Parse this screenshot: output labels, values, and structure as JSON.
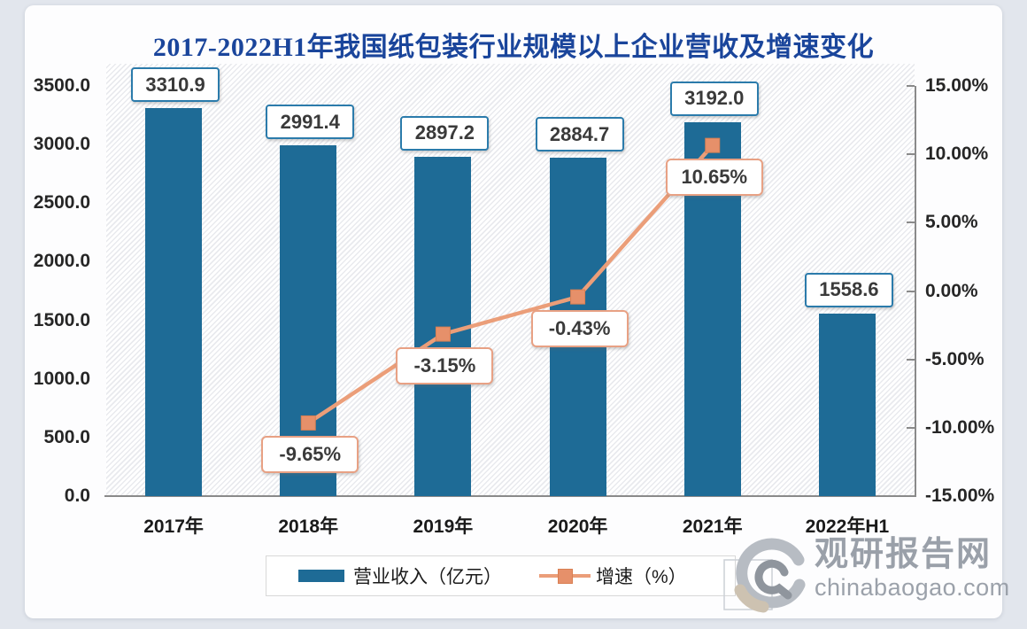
{
  "chart_data": {
    "type": "bar+line",
    "title": "2017-2022H1年我国纸包装行业规模以上企业营收及增速变化",
    "categories": [
      "2017年",
      "2018年",
      "2019年",
      "2020年",
      "2021年",
      "2022年H1"
    ],
    "series": [
      {
        "name": "营业收入（亿元）",
        "type": "bar",
        "axis": "left",
        "values": [
          3310.9,
          2991.4,
          2897.2,
          2884.7,
          3192.0,
          1558.6
        ],
        "data_labels": [
          "3310.9",
          "2991.4",
          "2897.2",
          "2884.7",
          "3192.0",
          "1558.6"
        ]
      },
      {
        "name": "增速（%）",
        "type": "line",
        "axis": "right",
        "values": [
          null,
          -9.65,
          -3.15,
          -0.43,
          10.65,
          null
        ],
        "data_labels": [
          null,
          "-9.65%",
          "-3.15%",
          "-0.43%",
          "10.65%",
          null
        ]
      }
    ],
    "left_axis": {
      "min": 0,
      "max": 3500,
      "tick_step": 500,
      "tick_values": [
        3500,
        3000,
        2500,
        2000,
        1500,
        1000,
        500,
        0
      ],
      "tick_labels": [
        "3500.0",
        "3000.0",
        "2500.0",
        "2000.0",
        "1500.0",
        "1000.0",
        "500.0",
        "0.0"
      ]
    },
    "right_axis": {
      "min": -15,
      "max": 15,
      "tick_step": 5,
      "tick_values": [
        15,
        10,
        5,
        0,
        -5,
        -10,
        -15
      ],
      "tick_labels": [
        "15.00%",
        "10.00%",
        "5.00%",
        "0.00%",
        "-5.00%",
        "-10.00%",
        "-15.00%"
      ]
    },
    "legend_position": "bottom",
    "plot_background": "diagonal-hatch",
    "gridlines": false,
    "colors": {
      "bar": "#1e6b96",
      "line": "#eb9e79",
      "marker": "#e6906a",
      "marker_edge": "#d97f52",
      "bar_label_border": "#2b7bab",
      "pct_label_border": "#e8a184",
      "title": "#1a459b",
      "axis": "#8a8a8a",
      "label_text": "#3a3a3a"
    }
  },
  "watermark": {
    "brand": "观研报告网",
    "domain": "chinabaogao.com"
  }
}
